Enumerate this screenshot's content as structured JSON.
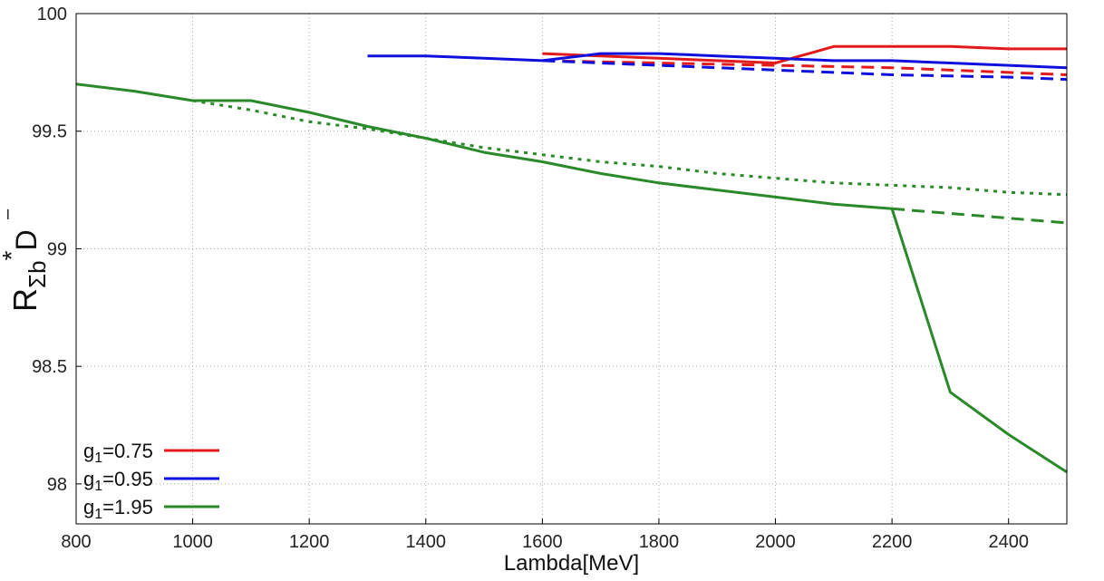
{
  "chart_data": {
    "type": "line",
    "xlabel": "Lambda[MeV]",
    "ylabel": {
      "main": "R",
      "sub": "Σb",
      "sup": "*",
      "tail": "D",
      "bar": "–"
    },
    "xlim": [
      800,
      2500
    ],
    "ylim": [
      97.83,
      100
    ],
    "xticks": [
      800,
      1000,
      1200,
      1400,
      1600,
      1800,
      2000,
      2200,
      2400
    ],
    "yticks": [
      98,
      98.5,
      99,
      99.5,
      100
    ],
    "ytick_labels": [
      "98",
      "98.5",
      "99",
      "99.5",
      "100"
    ],
    "grid": true,
    "legend_position": "bottom-left",
    "legend": [
      {
        "text_main": "g",
        "text_sub": "1",
        "text_rest": "=0.75",
        "color": "#e31a1c"
      },
      {
        "text_main": "g",
        "text_sub": "1",
        "text_rest": "=0.95",
        "color": "#1010dd"
      },
      {
        "text_main": "g",
        "text_sub": "1",
        "text_rest": "=1.95",
        "color": "#2a8a2a"
      }
    ],
    "series": [
      {
        "group": "g1=0.75",
        "style": "solid",
        "color": "#e31a1c",
        "x": [
          1600,
          1700,
          1800,
          1900,
          2000,
          2100,
          2200,
          2300,
          2400,
          2500
        ],
        "y": [
          99.83,
          99.82,
          99.81,
          99.8,
          99.79,
          99.86,
          99.86,
          99.86,
          99.85,
          99.85
        ]
      },
      {
        "group": "g1=0.75",
        "style": "dashed",
        "color": "#e31a1c",
        "x": [
          1600,
          1800,
          2000,
          2200,
          2400,
          2500
        ],
        "y": [
          99.8,
          99.79,
          99.78,
          99.77,
          99.75,
          99.74
        ]
      },
      {
        "group": "g1=0.95",
        "style": "solid",
        "color": "#1010dd",
        "x": [
          1300,
          1400,
          1500,
          1600,
          1700,
          1800,
          1900,
          2000,
          2100,
          2200,
          2300,
          2400,
          2500
        ],
        "y": [
          99.82,
          99.82,
          99.81,
          99.8,
          99.83,
          99.83,
          99.82,
          99.81,
          99.8,
          99.8,
          99.79,
          99.78,
          99.77
        ]
      },
      {
        "group": "g1=0.95",
        "style": "dashed",
        "color": "#1010dd",
        "x": [
          1600,
          1800,
          2000,
          2200,
          2400,
          2500
        ],
        "y": [
          99.8,
          99.78,
          99.76,
          99.74,
          99.73,
          99.72
        ]
      },
      {
        "group": "g1=1.95",
        "style": "solid",
        "color": "#2a8a2a",
        "x": [
          800,
          900,
          1000,
          1100,
          1200,
          1300,
          1400,
          1500,
          1600,
          1700,
          1800,
          1900,
          2000,
          2100,
          2200,
          2300,
          2400,
          2500
        ],
        "y": [
          99.7,
          99.67,
          99.63,
          99.63,
          99.58,
          99.52,
          99.47,
          99.41,
          99.37,
          99.32,
          99.28,
          99.25,
          99.22,
          99.19,
          99.17,
          98.39,
          98.21,
          98.05
        ]
      },
      {
        "group": "g1=1.95",
        "style": "dashed",
        "color": "#2a8a2a",
        "x": [
          2200,
          2300,
          2400,
          2500
        ],
        "y": [
          99.17,
          99.15,
          99.13,
          99.11
        ]
      },
      {
        "group": "g1=1.95",
        "style": "dotted",
        "color": "#2a8a2a",
        "x": [
          1000,
          1100,
          1200,
          1300,
          1400,
          1500,
          1600,
          1700,
          1800,
          1900,
          2000,
          2100,
          2200,
          2300,
          2400,
          2500
        ],
        "y": [
          99.63,
          99.59,
          99.54,
          99.51,
          99.47,
          99.43,
          99.4,
          99.37,
          99.35,
          99.32,
          99.3,
          99.28,
          99.27,
          99.26,
          99.24,
          99.23
        ]
      }
    ]
  }
}
